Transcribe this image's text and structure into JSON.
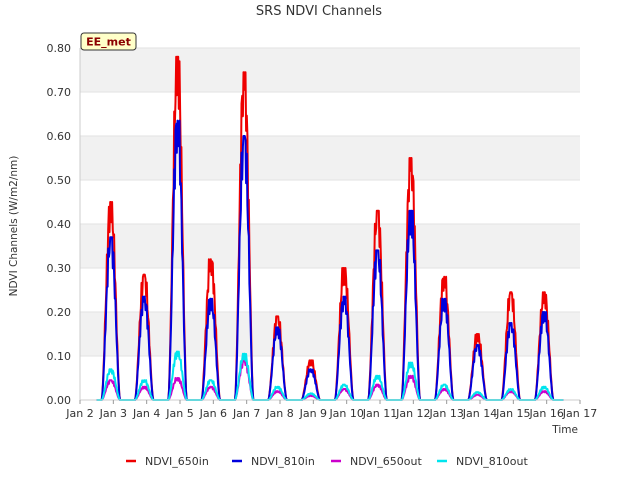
{
  "chart_data": {
    "type": "line",
    "title": "SRS NDVI Channels",
    "xlabel": "Time",
    "ylabel": "NDVI Channels (W/m2/nm)",
    "ylim": [
      0,
      0.8
    ],
    "xlim": [
      2,
      17
    ],
    "yticks": [
      "0.00",
      "0.10",
      "0.20",
      "0.30",
      "0.40",
      "0.50",
      "0.60",
      "0.70",
      "0.80"
    ],
    "ytick_values": [
      0,
      0.1,
      0.2,
      0.3,
      0.4,
      0.5,
      0.6,
      0.7,
      0.8
    ],
    "xticks": [
      "Jan 2",
      "Jan 3",
      "Jan 4",
      "Jan 5",
      "Jan 6",
      "Jan 7",
      "Jan 8",
      "Jan 9",
      "Jan 10",
      "Jan 11",
      "Jan 12",
      "Jan 13",
      "Jan 14",
      "Jan 15",
      "Jan 16",
      "Jan 17"
    ],
    "xtick_values": [
      2,
      3,
      4,
      5,
      6,
      7,
      8,
      9,
      10,
      11,
      12,
      13,
      14,
      15,
      16,
      17
    ],
    "grid": true,
    "legend_position": "bottom",
    "badge": "EE_met",
    "days": [
      3,
      4,
      5,
      6,
      7,
      8,
      9,
      10,
      11,
      12,
      13,
      14,
      15,
      16
    ],
    "series": [
      {
        "name": "NDVI_650in",
        "color": "#ee0000",
        "peaks": [
          0.45,
          0.285,
          0.78,
          0.32,
          0.745,
          0.19,
          0.09,
          0.3,
          0.43,
          0.55,
          0.28,
          0.15,
          0.245,
          0.245
        ]
      },
      {
        "name": "NDVI_810in",
        "color": "#0000dd",
        "peaks": [
          0.37,
          0.235,
          0.635,
          0.23,
          0.6,
          0.165,
          0.07,
          0.235,
          0.34,
          0.43,
          0.23,
          0.125,
          0.175,
          0.2
        ]
      },
      {
        "name": "NDVI_650out",
        "color": "#cc00cc",
        "peaks": [
          0.045,
          0.03,
          0.05,
          0.03,
          0.09,
          0.02,
          0.01,
          0.025,
          0.035,
          0.055,
          0.025,
          0.012,
          0.02,
          0.02
        ]
      },
      {
        "name": "NDVI_810out",
        "color": "#00e5ee",
        "peaks": [
          0.07,
          0.045,
          0.11,
          0.045,
          0.105,
          0.03,
          0.015,
          0.035,
          0.055,
          0.085,
          0.035,
          0.018,
          0.025,
          0.03
        ]
      }
    ]
  }
}
